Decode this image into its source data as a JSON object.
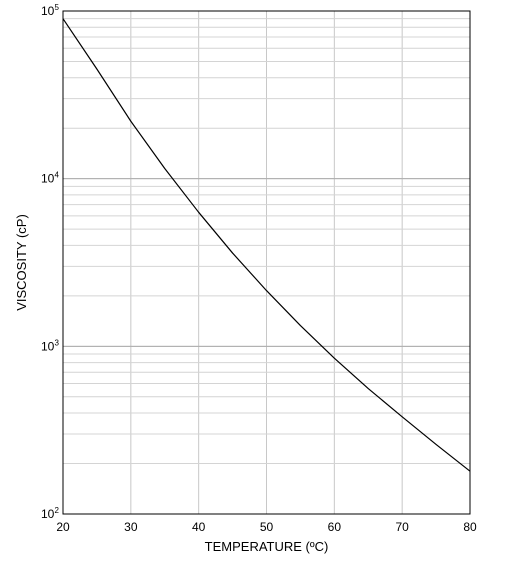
{
  "chart_data": {
    "type": "line",
    "title": "",
    "xlabel": "TEMPERATURE (ºC)",
    "ylabel": "VISCOSITY (cP)",
    "xlim": [
      20,
      80
    ],
    "ylim": [
      100,
      100000
    ],
    "yscale": "log",
    "grid": true,
    "x_ticks": [
      20,
      30,
      40,
      50,
      60,
      70,
      80
    ],
    "y_ticks": [
      {
        "base": "10",
        "exp": "2",
        "value": 100
      },
      {
        "base": "10",
        "exp": "3",
        "value": 1000
      },
      {
        "base": "10",
        "exp": "4",
        "value": 10000
      },
      {
        "base": "10",
        "exp": "5",
        "value": 100000
      }
    ],
    "series": [
      {
        "color": "#000000",
        "x": [
          20,
          25,
          30,
          35,
          40,
          45,
          50,
          55,
          60,
          65,
          70,
          75,
          80
        ],
        "y": [
          90000,
          45000,
          22000,
          11500,
          6300,
          3600,
          2150,
          1330,
          850,
          560,
          380,
          260,
          180
        ]
      }
    ]
  }
}
